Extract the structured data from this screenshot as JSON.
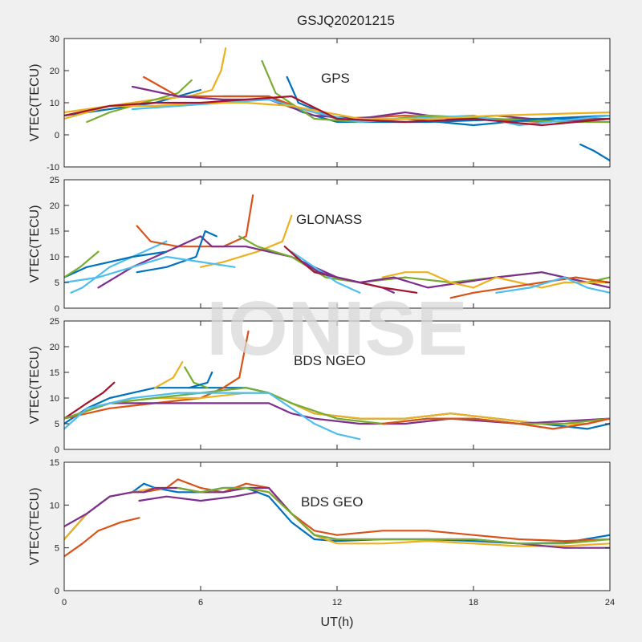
{
  "figure": {
    "title": "GSJQ20201215",
    "watermark": "IONISE",
    "xlabel": "UT(h)"
  },
  "colors": [
    "#0072BD",
    "#D95319",
    "#EDB120",
    "#7E2F8E",
    "#77AC30",
    "#4DBEEE",
    "#A2142F"
  ],
  "chart_data": [
    {
      "type": "line",
      "panel_label": "GPS",
      "ylabel": "VTEC(TECU)",
      "xlim": [
        0,
        24
      ],
      "ylim": [
        -10,
        30
      ],
      "xticks": [
        0,
        6,
        12,
        18,
        24
      ],
      "yticks": [
        -10,
        0,
        10,
        20,
        30
      ],
      "grid": false,
      "series": [
        {
          "color": "#0072BD",
          "x": [
            0,
            2,
            4,
            5,
            6
          ],
          "y": [
            6,
            8,
            10,
            12,
            14
          ]
        },
        {
          "color": "#EDB120",
          "x": [
            0,
            2,
            4,
            5.5,
            6.5,
            6.9,
            7.1
          ],
          "y": [
            5,
            9,
            11,
            12,
            14,
            20,
            27
          ]
        },
        {
          "color": "#77AC30",
          "x": [
            1,
            2,
            3.5,
            5,
            5.6
          ],
          "y": [
            4,
            7,
            10,
            13,
            17
          ]
        },
        {
          "color": "#0072BD",
          "x": [
            7,
            9,
            10.5,
            12,
            16,
            20,
            24
          ],
          "y": [
            12,
            12,
            7,
            4,
            4,
            5,
            5
          ]
        },
        {
          "color": "#D95319",
          "x": [
            3.5,
            5,
            7,
            9,
            10.5,
            12,
            15,
            18,
            21,
            24
          ],
          "y": [
            18,
            12,
            12,
            12,
            8,
            5,
            6,
            5,
            4,
            5
          ]
        },
        {
          "color": "#7E2F8E",
          "x": [
            3,
            5,
            7,
            9,
            11,
            13,
            15,
            17,
            19,
            22,
            24
          ],
          "y": [
            15,
            12,
            11,
            11,
            6,
            5,
            7,
            5,
            6,
            4,
            5
          ]
        },
        {
          "color": "#77AC30",
          "x": [
            8.7,
            9.3,
            11,
            13,
            16,
            19,
            22,
            24
          ],
          "y": [
            23,
            13,
            5,
            4,
            6,
            5,
            4,
            4
          ]
        },
        {
          "color": "#0072BD",
          "x": [
            9.8,
            10.3,
            12,
            15,
            18,
            21,
            24
          ],
          "y": [
            18,
            10,
            5,
            5,
            3,
            5,
            6
          ]
        },
        {
          "color": "#4DBEEE",
          "x": [
            3,
            5,
            7,
            9,
            11,
            13,
            15,
            18,
            20,
            24
          ],
          "y": [
            8,
            9,
            10,
            11,
            7,
            4,
            5,
            6,
            3,
            6
          ]
        },
        {
          "color": "#EDB120",
          "x": [
            0,
            2,
            4,
            6,
            8,
            10,
            13,
            16,
            19,
            24
          ],
          "y": [
            7,
            9,
            9,
            10,
            10,
            9,
            5,
            5,
            6,
            7
          ]
        },
        {
          "color": "#A2142F",
          "x": [
            0,
            2,
            4,
            6,
            8,
            10,
            12,
            15,
            18,
            21,
            24
          ],
          "y": [
            6,
            9,
            10,
            10,
            11,
            12,
            5,
            4,
            5,
            3,
            5
          ]
        },
        {
          "color": "#0072BD",
          "x": [
            22.7,
            23.3,
            24
          ],
          "y": [
            -3,
            -5,
            -8
          ]
        }
      ]
    },
    {
      "type": "line",
      "panel_label": "GLONASS",
      "ylabel": "VTEC(TECU)",
      "xlim": [
        0,
        24
      ],
      "ylim": [
        0,
        25
      ],
      "xticks": [
        0,
        6,
        12,
        18,
        24
      ],
      "yticks": [
        0,
        5,
        10,
        15,
        20,
        25
      ],
      "grid": false,
      "series": [
        {
          "color": "#4DBEEE",
          "x": [
            0.3,
            0.8,
            2,
            3.5,
            4.5
          ],
          "y": [
            3,
            4,
            8,
            11,
            13
          ]
        },
        {
          "color": "#D95319",
          "x": [
            3.2,
            3.8,
            5,
            7,
            8,
            8.3
          ],
          "y": [
            16,
            13,
            12,
            12,
            14,
            22
          ]
        },
        {
          "color": "#EDB120",
          "x": [
            6,
            7,
            8.5,
            9.6,
            10
          ],
          "y": [
            8,
            9,
            11,
            13,
            18
          ]
        },
        {
          "color": "#7E2F8E",
          "x": [
            1.5,
            3,
            5,
            6,
            6.5,
            8,
            10,
            12,
            14,
            14.5
          ],
          "y": [
            4,
            8,
            12,
            14,
            12,
            12,
            10,
            6,
            4,
            3
          ]
        },
        {
          "color": "#0072BD",
          "x": [
            3.2,
            4.5,
            5.8,
            6.2,
            6.7
          ],
          "y": [
            7,
            8,
            10,
            15,
            14
          ]
        },
        {
          "color": "#77AC30",
          "x": [
            7.7,
            8.5,
            10,
            11.5,
            13,
            15,
            17,
            19,
            21,
            23,
            24
          ],
          "y": [
            14,
            12,
            10,
            6,
            5,
            6,
            5,
            6,
            7,
            5,
            6
          ]
        },
        {
          "color": "#4DBEEE",
          "x": [
            10,
            11,
            12,
            13
          ],
          "y": [
            11,
            8,
            5,
            3
          ]
        },
        {
          "color": "#A2142F",
          "x": [
            9.7,
            10.2,
            11,
            13,
            14,
            15.5
          ],
          "y": [
            12,
            10,
            7,
            5,
            4,
            3
          ]
        },
        {
          "color": "#7E2F8E",
          "x": [
            10.5,
            11.2,
            12,
            13,
            14.5,
            16,
            17.5,
            19,
            21,
            23,
            24
          ],
          "y": [
            9,
            7,
            6,
            5,
            6,
            4,
            5,
            6,
            7,
            5,
            4
          ]
        },
        {
          "color": "#EDB120",
          "x": [
            14,
            15,
            16,
            17,
            18,
            19,
            20,
            21,
            22,
            24
          ],
          "y": [
            6,
            7,
            7,
            5,
            4,
            6,
            5,
            4,
            5,
            5
          ]
        },
        {
          "color": "#0072BD",
          "x": [
            0,
            1,
            2,
            3,
            4.5
          ],
          "y": [
            6,
            8,
            9,
            10,
            11
          ]
        },
        {
          "color": "#77AC30",
          "x": [
            0,
            0.7,
            1.5
          ],
          "y": [
            6,
            8,
            11
          ]
        },
        {
          "color": "#D95319",
          "x": [
            17,
            18,
            19.5,
            21,
            22.5,
            24
          ],
          "y": [
            2,
            3,
            4,
            5,
            6,
            5
          ]
        },
        {
          "color": "#4DBEEE",
          "x": [
            19,
            20.5,
            22,
            23,
            24
          ],
          "y": [
            3,
            4,
            6,
            4,
            3
          ]
        },
        {
          "color": "#4DBEEE",
          "x": [
            0,
            1.5,
            3,
            4.5,
            6,
            7.5
          ],
          "y": [
            5,
            6,
            8,
            10,
            9,
            8
          ]
        }
      ]
    },
    {
      "type": "line",
      "panel_label": "BDS NGEO",
      "ylabel": "VTEC(TECU)",
      "xlim": [
        0,
        24
      ],
      "ylim": [
        0,
        25
      ],
      "xticks": [
        0,
        6,
        12,
        18,
        24
      ],
      "yticks": [
        0,
        5,
        10,
        15,
        20,
        25
      ],
      "grid": false,
      "series": [
        {
          "color": "#0072BD",
          "x": [
            0,
            1,
            2,
            3,
            4,
            5,
            6,
            8,
            9,
            10,
            11,
            13,
            15,
            17,
            19,
            21,
            23,
            24
          ],
          "y": [
            5,
            8,
            10,
            11,
            12,
            12,
            12,
            12,
            11,
            9,
            7,
            6,
            6,
            7,
            6,
            5,
            4,
            5
          ]
        },
        {
          "color": "#D95319",
          "x": [
            0,
            2,
            4,
            6,
            7,
            7.7,
            8.1
          ],
          "y": [
            6,
            8,
            9,
            10,
            12,
            14,
            23
          ]
        },
        {
          "color": "#A2142F",
          "x": [
            0,
            1,
            1.7,
            2.2
          ],
          "y": [
            6,
            9,
            11,
            13
          ]
        },
        {
          "color": "#EDB120",
          "x": [
            4,
            4.8,
            5.2
          ],
          "y": [
            12,
            14,
            17
          ]
        },
        {
          "color": "#77AC30",
          "x": [
            5.3,
            5.7,
            6.3
          ],
          "y": [
            16,
            13,
            12
          ]
        },
        {
          "color": "#0072BD",
          "x": [
            5.5,
            6.3,
            6.5
          ],
          "y": [
            12,
            13,
            15
          ]
        },
        {
          "color": "#EDB120",
          "x": [
            0,
            2,
            4,
            6,
            8,
            9,
            10,
            11,
            13,
            15,
            17,
            19,
            21,
            23,
            24
          ],
          "y": [
            6,
            9,
            10,
            10,
            11,
            11,
            9,
            7,
            6,
            6,
            7,
            6,
            5,
            5,
            6
          ]
        },
        {
          "color": "#7E2F8E",
          "x": [
            0,
            2,
            4,
            6,
            8,
            9,
            10,
            11,
            13,
            15,
            17,
            20,
            24
          ],
          "y": [
            6,
            9,
            9,
            9,
            9,
            9,
            7,
            6,
            5,
            5,
            6,
            5,
            6
          ]
        },
        {
          "color": "#77AC30",
          "x": [
            0,
            2,
            4,
            6,
            8,
            9,
            10,
            12,
            14,
            16,
            18,
            20,
            22,
            24
          ],
          "y": [
            6,
            9,
            10,
            11,
            12,
            11,
            9,
            6,
            5,
            6,
            6,
            5,
            5,
            6
          ]
        },
        {
          "color": "#4DBEEE",
          "x": [
            0,
            1,
            3,
            5,
            7,
            9,
            10,
            11,
            12,
            13
          ],
          "y": [
            4,
            8,
            10,
            11,
            11,
            11,
            8,
            5,
            3,
            2
          ]
        },
        {
          "color": "#D95319",
          "x": [
            14,
            16,
            18,
            20,
            21.5,
            23,
            24
          ],
          "y": [
            5,
            6,
            6,
            5,
            4,
            5,
            6
          ]
        }
      ]
    },
    {
      "type": "line",
      "panel_label": "BDS GEO",
      "ylabel": "VTEC(TECU)",
      "xlim": [
        0,
        24
      ],
      "ylim": [
        0,
        15
      ],
      "xticks": [
        0,
        6,
        12,
        18,
        24
      ],
      "yticks": [
        0,
        5,
        10,
        15
      ],
      "grid": false,
      "series": [
        {
          "color": "#0072BD",
          "x": [
            0,
            1,
            2,
            3,
            3.5,
            4,
            5,
            6,
            7,
            8,
            9,
            10,
            11,
            12,
            14,
            16,
            18,
            20,
            22,
            24
          ],
          "y": [
            6,
            9,
            11,
            11.5,
            12.5,
            12,
            11.5,
            11.5,
            12,
            12,
            11,
            8,
            6,
            5.8,
            6,
            6,
            5.8,
            5.5,
            5.6,
            6.5
          ]
        },
        {
          "color": "#D95319",
          "x": [
            0,
            0.8,
            1.5,
            2.5,
            3.3
          ],
          "y": [
            4,
            5.5,
            7,
            8,
            8.5
          ]
        },
        {
          "color": "#D95319",
          "x": [
            3.5,
            4.5,
            5,
            6,
            7,
            8,
            9,
            10,
            11,
            12,
            14,
            16,
            18,
            20,
            22,
            24
          ],
          "y": [
            11.5,
            12,
            13,
            12,
            11.5,
            12.5,
            12,
            9,
            7,
            6.5,
            7,
            7,
            6.5,
            6,
            5.8,
            6
          ]
        },
        {
          "color": "#EDB120",
          "x": [
            0,
            1,
            2,
            3,
            4,
            5,
            6,
            7,
            8,
            9,
            10,
            11,
            12,
            14,
            16,
            18,
            20,
            22,
            24
          ],
          "y": [
            6,
            9,
            11,
            11.5,
            12,
            12,
            11.5,
            11.5,
            12,
            11.5,
            9,
            6.5,
            5.5,
            5.5,
            5.8,
            5.5,
            5.2,
            5.2,
            5.5
          ]
        },
        {
          "color": "#7E2F8E",
          "x": [
            0,
            1,
            2,
            3,
            3.5,
            4,
            5,
            6,
            7,
            8,
            9,
            10,
            11,
            12,
            14,
            16,
            18,
            20,
            22,
            24
          ],
          "y": [
            7.5,
            9,
            11,
            11.5,
            11.5,
            12,
            12,
            11.5,
            11.5,
            12,
            12,
            9,
            6.5,
            6,
            6,
            6,
            6,
            5.5,
            5,
            5
          ]
        },
        {
          "color": "#7E2F8E",
          "x": [
            3.3,
            4.5,
            6,
            7.5,
            8.5
          ],
          "y": [
            10.5,
            11,
            10.5,
            11,
            11.5
          ]
        },
        {
          "color": "#77AC30",
          "x": [
            5,
            6,
            7,
            8,
            9,
            10,
            11,
            12,
            14,
            16,
            18,
            20,
            22,
            24
          ],
          "y": [
            12,
            11.5,
            12,
            12,
            11.5,
            9,
            6.5,
            6,
            6,
            6,
            6,
            5.5,
            5.5,
            6
          ]
        }
      ]
    }
  ]
}
